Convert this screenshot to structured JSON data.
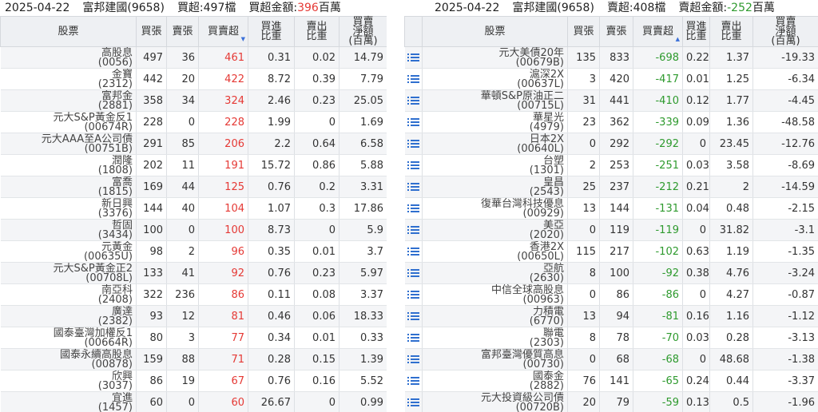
{
  "left": {
    "date": "2025-04-22",
    "broker": "富邦建國(9658)",
    "count_label": "買超:497檔",
    "amount_prefix": "買超金額:",
    "amount_value": "396",
    "amount_unit": "百萬",
    "headers": {
      "stock": "股票",
      "buy": "買張",
      "sell": "賣張",
      "net": "買賣超",
      "buy_ratio_1": "買進",
      "buy_ratio_2": "比重",
      "sell_ratio_1": "賣出",
      "sell_ratio_2": "比重",
      "amount_1": "買賣",
      "amount_2": "淨額",
      "amount_3": "(百萬)"
    },
    "rows": [
      {
        "name": "高股息",
        "code": "(0056)",
        "buy": "497",
        "sell": "36",
        "net": "461",
        "buy_ratio": "0.31",
        "sell_ratio": "0.02",
        "amount": "14.79"
      },
      {
        "name": "金寶",
        "code": "(2312)",
        "buy": "442",
        "sell": "20",
        "net": "422",
        "buy_ratio": "8.72",
        "sell_ratio": "0.39",
        "amount": "7.79"
      },
      {
        "name": "富邦金",
        "code": "(2881)",
        "buy": "358",
        "sell": "34",
        "net": "324",
        "buy_ratio": "2.46",
        "sell_ratio": "0.23",
        "amount": "25.05"
      },
      {
        "name": "元大S&P黃金反1",
        "code": "(00674R)",
        "buy": "228",
        "sell": "0",
        "net": "228",
        "buy_ratio": "1.99",
        "sell_ratio": "0",
        "amount": "1.69"
      },
      {
        "name": "元大AAA至A公司債",
        "code": "(00751B)",
        "buy": "291",
        "sell": "85",
        "net": "206",
        "buy_ratio": "2.2",
        "sell_ratio": "0.64",
        "amount": "6.58"
      },
      {
        "name": "潤隆",
        "code": "(1808)",
        "buy": "202",
        "sell": "11",
        "net": "191",
        "buy_ratio": "15.72",
        "sell_ratio": "0.86",
        "amount": "5.88"
      },
      {
        "name": "富喬",
        "code": "(1815)",
        "buy": "169",
        "sell": "44",
        "net": "125",
        "buy_ratio": "0.76",
        "sell_ratio": "0.2",
        "amount": "3.31"
      },
      {
        "name": "新日興",
        "code": "(3376)",
        "buy": "144",
        "sell": "40",
        "net": "104",
        "buy_ratio": "1.07",
        "sell_ratio": "0.3",
        "amount": "17.86"
      },
      {
        "name": "哲固",
        "code": "(3434)",
        "buy": "100",
        "sell": "0",
        "net": "100",
        "buy_ratio": "8.73",
        "sell_ratio": "0",
        "amount": "5.9"
      },
      {
        "name": "元黃金",
        "code": "(00635U)",
        "buy": "98",
        "sell": "2",
        "net": "96",
        "buy_ratio": "0.35",
        "sell_ratio": "0.01",
        "amount": "3.7"
      },
      {
        "name": "元大S&P黃金正2",
        "code": "(00708L)",
        "buy": "133",
        "sell": "41",
        "net": "92",
        "buy_ratio": "0.76",
        "sell_ratio": "0.23",
        "amount": "5.97"
      },
      {
        "name": "南亞科",
        "code": "(2408)",
        "buy": "322",
        "sell": "236",
        "net": "86",
        "buy_ratio": "0.11",
        "sell_ratio": "0.08",
        "amount": "3.37"
      },
      {
        "name": "廣達",
        "code": "(2382)",
        "buy": "93",
        "sell": "12",
        "net": "81",
        "buy_ratio": "0.46",
        "sell_ratio": "0.06",
        "amount": "18.33"
      },
      {
        "name": "國泰臺灣加權反1",
        "code": "(00664R)",
        "buy": "80",
        "sell": "3",
        "net": "77",
        "buy_ratio": "0.34",
        "sell_ratio": "0.01",
        "amount": "0.33"
      },
      {
        "name": "國泰永續高股息",
        "code": "(00878)",
        "buy": "159",
        "sell": "88",
        "net": "71",
        "buy_ratio": "0.28",
        "sell_ratio": "0.15",
        "amount": "1.39"
      },
      {
        "name": "欣興",
        "code": "(3037)",
        "buy": "86",
        "sell": "19",
        "net": "67",
        "buy_ratio": "0.76",
        "sell_ratio": "0.16",
        "amount": "5.52"
      },
      {
        "name": "宜進",
        "code": "(1457)",
        "buy": "60",
        "sell": "0",
        "net": "60",
        "buy_ratio": "26.67",
        "sell_ratio": "0",
        "amount": "0.99"
      }
    ]
  },
  "right": {
    "date": "2025-04-22",
    "broker": "富邦建國(9658)",
    "count_label": "賣超:408檔",
    "amount_prefix": "賣超金額:",
    "amount_value": "-252",
    "amount_unit": "百萬",
    "icon": "list-icon",
    "headers": {
      "stock": "股票",
      "buy": "買張",
      "sell": "賣張",
      "net": "買賣超",
      "buy_ratio_1": "買進",
      "buy_ratio_2": "比重",
      "sell_ratio_1": "賣出",
      "sell_ratio_2": "比重",
      "amount_1": "買賣",
      "amount_2": "淨額",
      "amount_3": "(百萬)"
    },
    "rows": [
      {
        "name": "元大美債20年",
        "code": "(00679B)",
        "buy": "135",
        "sell": "833",
        "net": "-698",
        "buy_ratio": "0.22",
        "sell_ratio": "1.37",
        "amount": "-19.33"
      },
      {
        "name": "滬深2X",
        "code": "(00637L)",
        "buy": "3",
        "sell": "420",
        "net": "-417",
        "buy_ratio": "0.01",
        "sell_ratio": "1.25",
        "amount": "-6.34"
      },
      {
        "name": "華頓S&P原油正二",
        "code": "(00715L)",
        "buy": "31",
        "sell": "441",
        "net": "-410",
        "buy_ratio": "0.12",
        "sell_ratio": "1.77",
        "amount": "-4.45"
      },
      {
        "name": "華星光",
        "code": "(4979)",
        "buy": "23",
        "sell": "362",
        "net": "-339",
        "buy_ratio": "0.09",
        "sell_ratio": "1.36",
        "amount": "-48.58"
      },
      {
        "name": "日本2X",
        "code": "(00640L)",
        "buy": "0",
        "sell": "292",
        "net": "-292",
        "buy_ratio": "0",
        "sell_ratio": "23.45",
        "amount": "-12.76"
      },
      {
        "name": "台塑",
        "code": "(1301)",
        "buy": "2",
        "sell": "253",
        "net": "-251",
        "buy_ratio": "0.03",
        "sell_ratio": "3.58",
        "amount": "-8.69"
      },
      {
        "name": "皇昌",
        "code": "(2543)",
        "buy": "25",
        "sell": "237",
        "net": "-212",
        "buy_ratio": "0.21",
        "sell_ratio": "2",
        "amount": "-14.59"
      },
      {
        "name": "復華台灣科技優息",
        "code": "(00929)",
        "buy": "13",
        "sell": "144",
        "net": "-131",
        "buy_ratio": "0.04",
        "sell_ratio": "0.48",
        "amount": "-2.15"
      },
      {
        "name": "美亞",
        "code": "(2020)",
        "buy": "0",
        "sell": "119",
        "net": "-119",
        "buy_ratio": "0",
        "sell_ratio": "31.82",
        "amount": "-3.1"
      },
      {
        "name": "香港2X",
        "code": "(00650L)",
        "buy": "115",
        "sell": "217",
        "net": "-102",
        "buy_ratio": "0.63",
        "sell_ratio": "1.19",
        "amount": "-1.35"
      },
      {
        "name": "亞航",
        "code": "(2630)",
        "buy": "8",
        "sell": "100",
        "net": "-92",
        "buy_ratio": "0.38",
        "sell_ratio": "4.76",
        "amount": "-3.24"
      },
      {
        "name": "中信全球高股息",
        "code": "(00963)",
        "buy": "0",
        "sell": "86",
        "net": "-86",
        "buy_ratio": "0",
        "sell_ratio": "4.27",
        "amount": "-0.87"
      },
      {
        "name": "力積電",
        "code": "(6770)",
        "buy": "13",
        "sell": "94",
        "net": "-81",
        "buy_ratio": "0.16",
        "sell_ratio": "1.16",
        "amount": "-1.12"
      },
      {
        "name": "聯電",
        "code": "(2303)",
        "buy": "8",
        "sell": "78",
        "net": "-70",
        "buy_ratio": "0.03",
        "sell_ratio": "0.28",
        "amount": "-3.13"
      },
      {
        "name": "富邦臺灣優質高息",
        "code": "(00730)",
        "buy": "0",
        "sell": "68",
        "net": "-68",
        "buy_ratio": "0",
        "sell_ratio": "48.68",
        "amount": "-1.38"
      },
      {
        "name": "國泰金",
        "code": "(2882)",
        "buy": "76",
        "sell": "141",
        "net": "-65",
        "buy_ratio": "0.24",
        "sell_ratio": "0.44",
        "amount": "-3.37"
      },
      {
        "name": "元大投資級公司債",
        "code": "(00720B)",
        "buy": "20",
        "sell": "79",
        "net": "-59",
        "buy_ratio": "0.13",
        "sell_ratio": "0.5",
        "amount": "-1.96"
      }
    ]
  },
  "colors": {
    "positive": "#e53935",
    "negative": "#2e9a2e",
    "header_bg": "#eef0f3",
    "row_alt": "#f4f5f7",
    "icon": "#2f6fcf"
  }
}
